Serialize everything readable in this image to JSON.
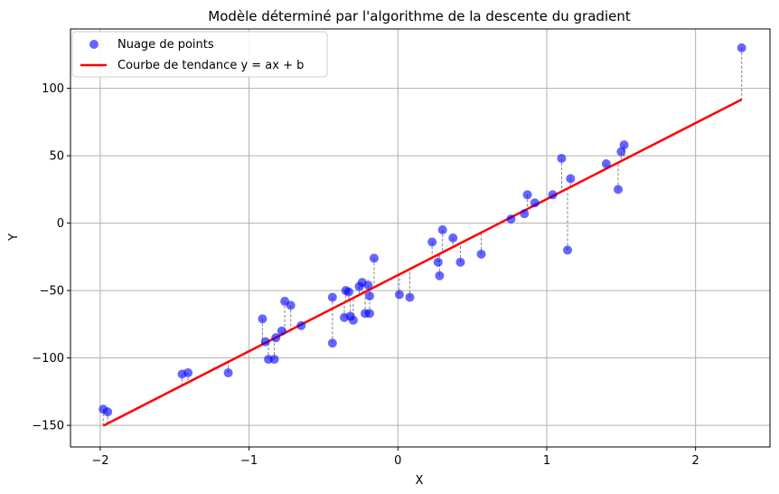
{
  "chart_data": {
    "type": "scatter",
    "title": "Modèle déterminé par l'algorithme de la descente du gradient",
    "xlabel": "X",
    "ylabel": "Y",
    "xlim": [
      -2.2,
      2.5
    ],
    "ylim": [
      -166,
      144
    ],
    "xticks": [
      -2,
      -1,
      0,
      1,
      2
    ],
    "xtick_labels": [
      "−2",
      "−1",
      "0",
      "1",
      "2"
    ],
    "yticks": [
      -150,
      -100,
      -50,
      0,
      50,
      100
    ],
    "ytick_labels": [
      "−150",
      "−100",
      "−50",
      "0",
      "50",
      "100"
    ],
    "grid": true,
    "legend_position": "top-left",
    "colors": {
      "points": "#0000ff",
      "trend": "#ff0000",
      "residual": "#808080",
      "grid": "#b0b0b0"
    },
    "series": [
      {
        "name": "Nuage de points",
        "kind": "scatter",
        "x": [
          -1.98,
          -1.95,
          -1.45,
          -1.41,
          -1.14,
          -0.91,
          -0.89,
          -0.87,
          -0.83,
          -0.82,
          -0.78,
          -0.76,
          -0.72,
          -0.65,
          -0.44,
          -0.44,
          -0.36,
          -0.35,
          -0.33,
          -0.32,
          -0.3,
          -0.26,
          -0.24,
          -0.22,
          -0.2,
          -0.19,
          -0.19,
          -0.16,
          0.01,
          0.08,
          0.23,
          0.27,
          0.28,
          0.3,
          0.37,
          0.42,
          0.56,
          0.76,
          0.85,
          0.87,
          0.92,
          1.04,
          1.1,
          1.14,
          1.16,
          1.4,
          1.48,
          1.5,
          1.52,
          2.31
        ],
        "y": [
          -138,
          -140,
          -112,
          -111,
          -111,
          -71,
          -88,
          -101,
          -101,
          -85,
          -80,
          -58,
          -61,
          -76,
          -55,
          -89,
          -70,
          -50,
          -51,
          -69,
          -72,
          -47,
          -44,
          -67,
          -46,
          -54,
          -67,
          -26,
          -53,
          -55,
          -14,
          -29,
          -39,
          -5,
          -11,
          -29,
          -23,
          3,
          7,
          21,
          15,
          21,
          48,
          -20,
          33,
          44,
          25,
          53,
          58,
          130
        ]
      },
      {
        "name": "Courbe de tendance y = ax + b",
        "kind": "line",
        "slope": 56.4,
        "intercept": -38.6,
        "x": [
          -1.98,
          2.31
        ]
      }
    ]
  }
}
